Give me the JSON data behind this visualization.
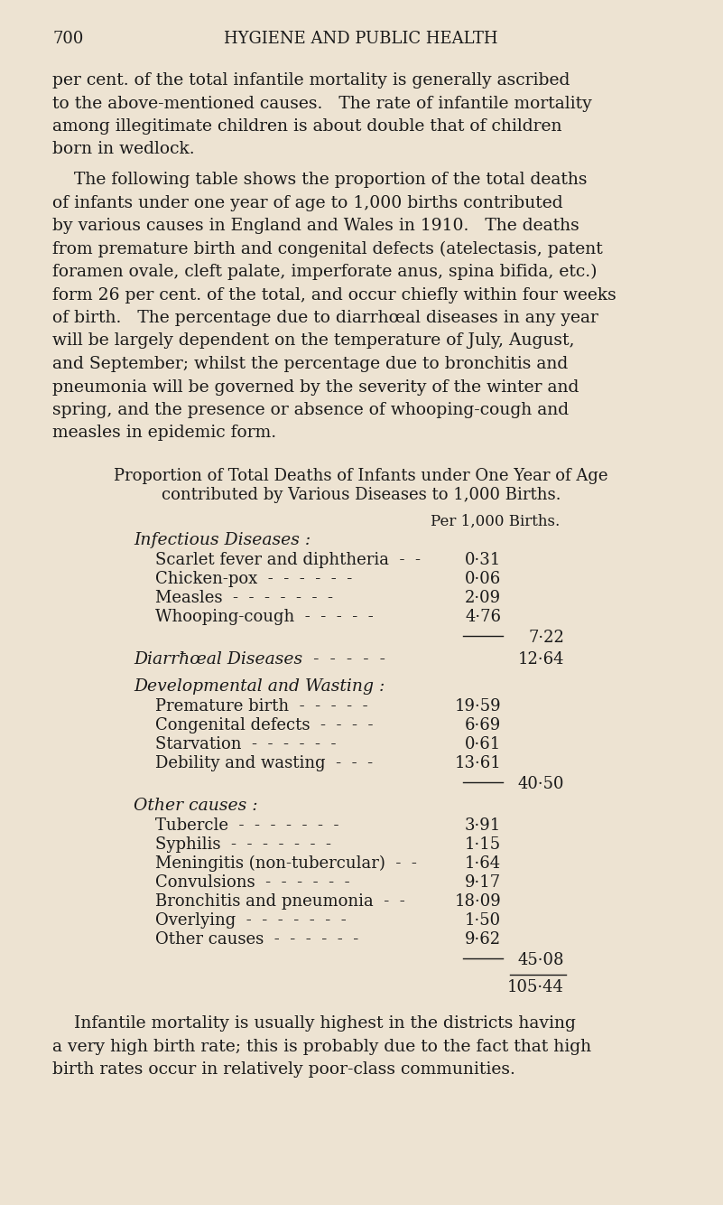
{
  "bg_color": "#ede3d2",
  "text_color": "#1a1a1a",
  "header_page": "700",
  "header_title": "HYGIENE AND PUBLIC HEALTH",
  "para1_lines": [
    "per cent. of the total infantile mortality is generally ascribed",
    "to the above-mentioned causes.   The rate of infantile mortality",
    "among illegitimate children is about double that of children",
    "born in wedlock."
  ],
  "para2_lines": [
    "    The following table shows the proportion of the total deaths",
    "of infants under one year of age to 1,000 births contributed",
    "by various causes in England and Wales in 1910.   The deaths",
    "from premature birth and congenital defects (atelectasis, patent",
    "foramen ovale, cleft palate, imperforate anus, spina bifida, etc.)",
    "form 26 per cent. of the total, and occur chiefly within four weeks",
    "of birth.   The percentage due to diarrhœal diseases in any year",
    "will be largely dependent on the temperature of July, August,",
    "and September; whilst the percentage due to bronchitis and",
    "pneumonia will be governed by the severity of the winter and",
    "spring, and the presence or absence of whooping-cough and",
    "measles in epidemic form."
  ],
  "table_title1": "Proportion of Total Deaths of Infants under One Year of Age",
  "table_title2": "contributed by Various Diseases to 1,000 Births.",
  "col_header": "Per 1,000 Births.",
  "section1_head": "Infectious Diseases :",
  "section1_items": [
    [
      "Scarlet fever and diphtheria  -  -",
      "0·31"
    ],
    [
      "Chicken-pox  -  -  -  -  -  -",
      "0·06"
    ],
    [
      "Measles  -  -  -  -  -  -  -",
      "2·09"
    ],
    [
      "Whooping-cough  -  -  -  -  -",
      "4·76"
    ]
  ],
  "section1_subtotal": "7·22",
  "section2_head": "Diarrħœal Diseases  -  -  -  -  -",
  "section2_total": "12·64",
  "section3_head": "Developmental and Wasting :",
  "section3_items": [
    [
      "Premature birth  -  -  -  -  -",
      "19·59"
    ],
    [
      "Congenital defects  -  -  -  -",
      "6·69"
    ],
    [
      "Starvation  -  -  -  -  -  -",
      "0·61"
    ],
    [
      "Debility and wasting  -  -  -",
      "13·61"
    ]
  ],
  "section3_subtotal": "40·50",
  "section4_head": "Other causes :",
  "section4_items": [
    [
      "Tubercle  -  -  -  -  -  -  -",
      "3·91"
    ],
    [
      "Syphilis  -  -  -  -  -  -  -",
      "1·15"
    ],
    [
      "Meningitis (non-tubercular)  -  -",
      "1·64"
    ],
    [
      "Convulsions  -  -  -  -  -  -",
      "9·17"
    ],
    [
      "Bronchitis and pneumonia  -  -",
      "18·09"
    ],
    [
      "Overlying  -  -  -  -  -  -  -",
      "1·50"
    ],
    [
      "Other causes  -  -  -  -  -  -",
      "9·62"
    ]
  ],
  "section4_subtotal": "45·08",
  "grand_total": "105·44",
  "para3_lines": [
    "    Infantile mortality is usually highest in the districts having",
    "a very high birth rate; this is probably due to the fact that high",
    "birth rates occur in relatively poor-class communities."
  ]
}
